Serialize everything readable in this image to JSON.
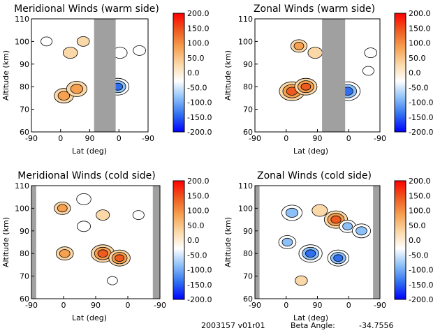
{
  "footer": {
    "id_text": "2003157 v01r01",
    "beta_label": "Beta Angle:",
    "beta_value": "-34.7556"
  },
  "colorbar": {
    "ticks": [
      "200.0",
      "150.0",
      "100.0",
      "50.0",
      "0.0",
      "-50.0",
      "-100.0",
      "-150.0",
      "-200.0"
    ],
    "range": [
      -200,
      200
    ],
    "colors": [
      "#0000ff",
      "#2e6ef0",
      "#8cc0f8",
      "#ffffff",
      "#fbd8a8",
      "#f6a050",
      "#ee5a20",
      "#ff0000"
    ]
  },
  "chart_data": [
    {
      "type": "heatmap",
      "title": "Meridional Winds (warm side)",
      "xlabel": "Lat (deg)",
      "ylabel": "Altitude (km)",
      "xticks": [
        "-90",
        "0",
        "90",
        "0",
        "-90"
      ],
      "yticks": [
        "60",
        "70",
        "80",
        "90",
        "100",
        "110"
      ],
      "ylim": [
        60,
        110
      ],
      "no_data_band_deg": [
        [
          55,
          105
        ]
      ],
      "features": [
        {
          "lat": -15,
          "alt": 76,
          "value": 110
        },
        {
          "lat": 15,
          "alt": 79,
          "value": 120
        },
        {
          "lat": 0,
          "alt": 95,
          "value": 60
        },
        {
          "lat": -55,
          "alt": 100,
          "value": -30
        },
        {
          "lat": 30,
          "alt": 100,
          "value": 40
        },
        {
          "lat": 110,
          "alt": 80,
          "value": -140
        },
        {
          "lat": 115,
          "alt": 95,
          "value": -60
        },
        {
          "lat": 160,
          "alt": 96,
          "value": -40
        }
      ]
    },
    {
      "type": "heatmap",
      "title": "Zonal Winds (warm side)",
      "xlabel": "Lat (deg)",
      "ylabel": "Altitude (km)",
      "xticks": [
        "-90",
        "0",
        "90",
        "0",
        "-90"
      ],
      "yticks": [
        "60",
        "70",
        "80",
        "90",
        "100",
        "110"
      ],
      "ylim": [
        60,
        110
      ],
      "no_data_band_deg": [
        [
          55,
          105
        ]
      ],
      "features": [
        {
          "lat": -10,
          "alt": 78,
          "value": 170
        },
        {
          "lat": 20,
          "alt": 80,
          "value": 140
        },
        {
          "lat": 5,
          "alt": 98,
          "value": 80
        },
        {
          "lat": 40,
          "alt": 95,
          "value": 60
        },
        {
          "lat": 110,
          "alt": 78,
          "value": -170
        },
        {
          "lat": 160,
          "alt": 95,
          "value": -40
        },
        {
          "lat": 155,
          "alt": 87,
          "value": -30
        }
      ]
    },
    {
      "type": "heatmap",
      "title": "Meridional Winds (cold side)",
      "xlabel": "Lat (deg)",
      "ylabel": "Altitude (km)",
      "xticks": [
        "-90",
        "0",
        "90",
        "0",
        "-90"
      ],
      "yticks": [
        "60",
        "70",
        "80",
        "90",
        "100",
        "110"
      ],
      "ylim": [
        60,
        110
      ],
      "no_data_band_deg": [
        [
          -90,
          -80
        ],
        [
          165,
          180
        ]
      ],
      "features": [
        {
          "lat": -25,
          "alt": 100,
          "value": 80
        },
        {
          "lat": 20,
          "alt": 104,
          "value": -60
        },
        {
          "lat": 20,
          "alt": 92,
          "value": -50
        },
        {
          "lat": -20,
          "alt": 80,
          "value": 90
        },
        {
          "lat": 60,
          "alt": 80,
          "value": 150
        },
        {
          "lat": 95,
          "alt": 78,
          "value": 130
        },
        {
          "lat": 60,
          "alt": 97,
          "value": 50
        },
        {
          "lat": 135,
          "alt": 97,
          "value": -30
        },
        {
          "lat": 80,
          "alt": 68,
          "value": -20
        }
      ]
    },
    {
      "type": "heatmap",
      "title": "Zonal Winds (cold side)",
      "xlabel": "Lat (deg)",
      "ylabel": "Altitude (km)",
      "xticks": [
        "-90",
        "0",
        "90",
        "0",
        "-90"
      ],
      "yticks": [
        "60",
        "70",
        "80",
        "90",
        "100",
        "110"
      ],
      "ylim": [
        60,
        110
      ],
      "no_data_band_deg": [
        [
          -90,
          -80
        ],
        [
          165,
          180
        ]
      ],
      "features": [
        {
          "lat": -10,
          "alt": 98,
          "value": -120
        },
        {
          "lat": 30,
          "alt": 80,
          "value": -150
        },
        {
          "lat": -20,
          "alt": 85,
          "value": -90
        },
        {
          "lat": 50,
          "alt": 99,
          "value": 70
        },
        {
          "lat": 85,
          "alt": 95,
          "value": 150
        },
        {
          "lat": 90,
          "alt": 78,
          "value": -130
        },
        {
          "lat": 110,
          "alt": 92,
          "value": -80
        },
        {
          "lat": 140,
          "alt": 90,
          "value": -100
        },
        {
          "lat": 10,
          "alt": 68,
          "value": 40
        }
      ]
    }
  ]
}
